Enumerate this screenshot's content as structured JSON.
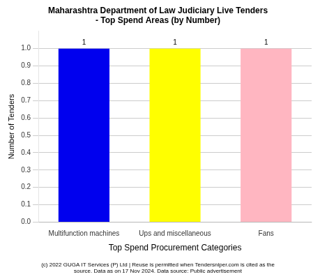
{
  "chart_data": {
    "type": "bar",
    "title": [
      "Maharashtra Department of Law Judiciary Live Tenders",
      "- Top Spend Areas (by Number)"
    ],
    "categories": [
      "Multifunction machines",
      "Ups and miscellaneous",
      "Fans"
    ],
    "values": [
      1,
      1,
      1
    ],
    "colors": [
      "#0000EE",
      "#FFFF00",
      "#FFB6C1"
    ],
    "data_labels": true,
    "x_label": "Top Spend Procurement Categories",
    "y_label": "Number of Tenders",
    "ylim": [
      0,
      1.1
    ],
    "yticks": [
      {
        "value": 0.0,
        "label": "0.0"
      },
      {
        "value": 0.1,
        "label": "0.1"
      },
      {
        "value": 0.2,
        "label": "0.2"
      },
      {
        "value": 0.3,
        "label": "0.3"
      },
      {
        "value": 0.4,
        "label": "0.4"
      },
      {
        "value": 0.5,
        "label": "0.5"
      },
      {
        "value": 0.6,
        "label": "0.6"
      },
      {
        "value": 0.7,
        "label": "0.7"
      },
      {
        "value": 0.8,
        "label": "0.8"
      },
      {
        "value": 0.9,
        "label": "0.9"
      },
      {
        "value": 1.0,
        "label": "1.0"
      }
    ],
    "grid": true,
    "annotations": [
      "(c) 2022 GUGA IT Services (P) Ltd | Reuse is permitted when Tendersniper.com is cited as the\nsource. Data as on 17 Nov 2024. Data source: Public advertisement"
    ]
  }
}
